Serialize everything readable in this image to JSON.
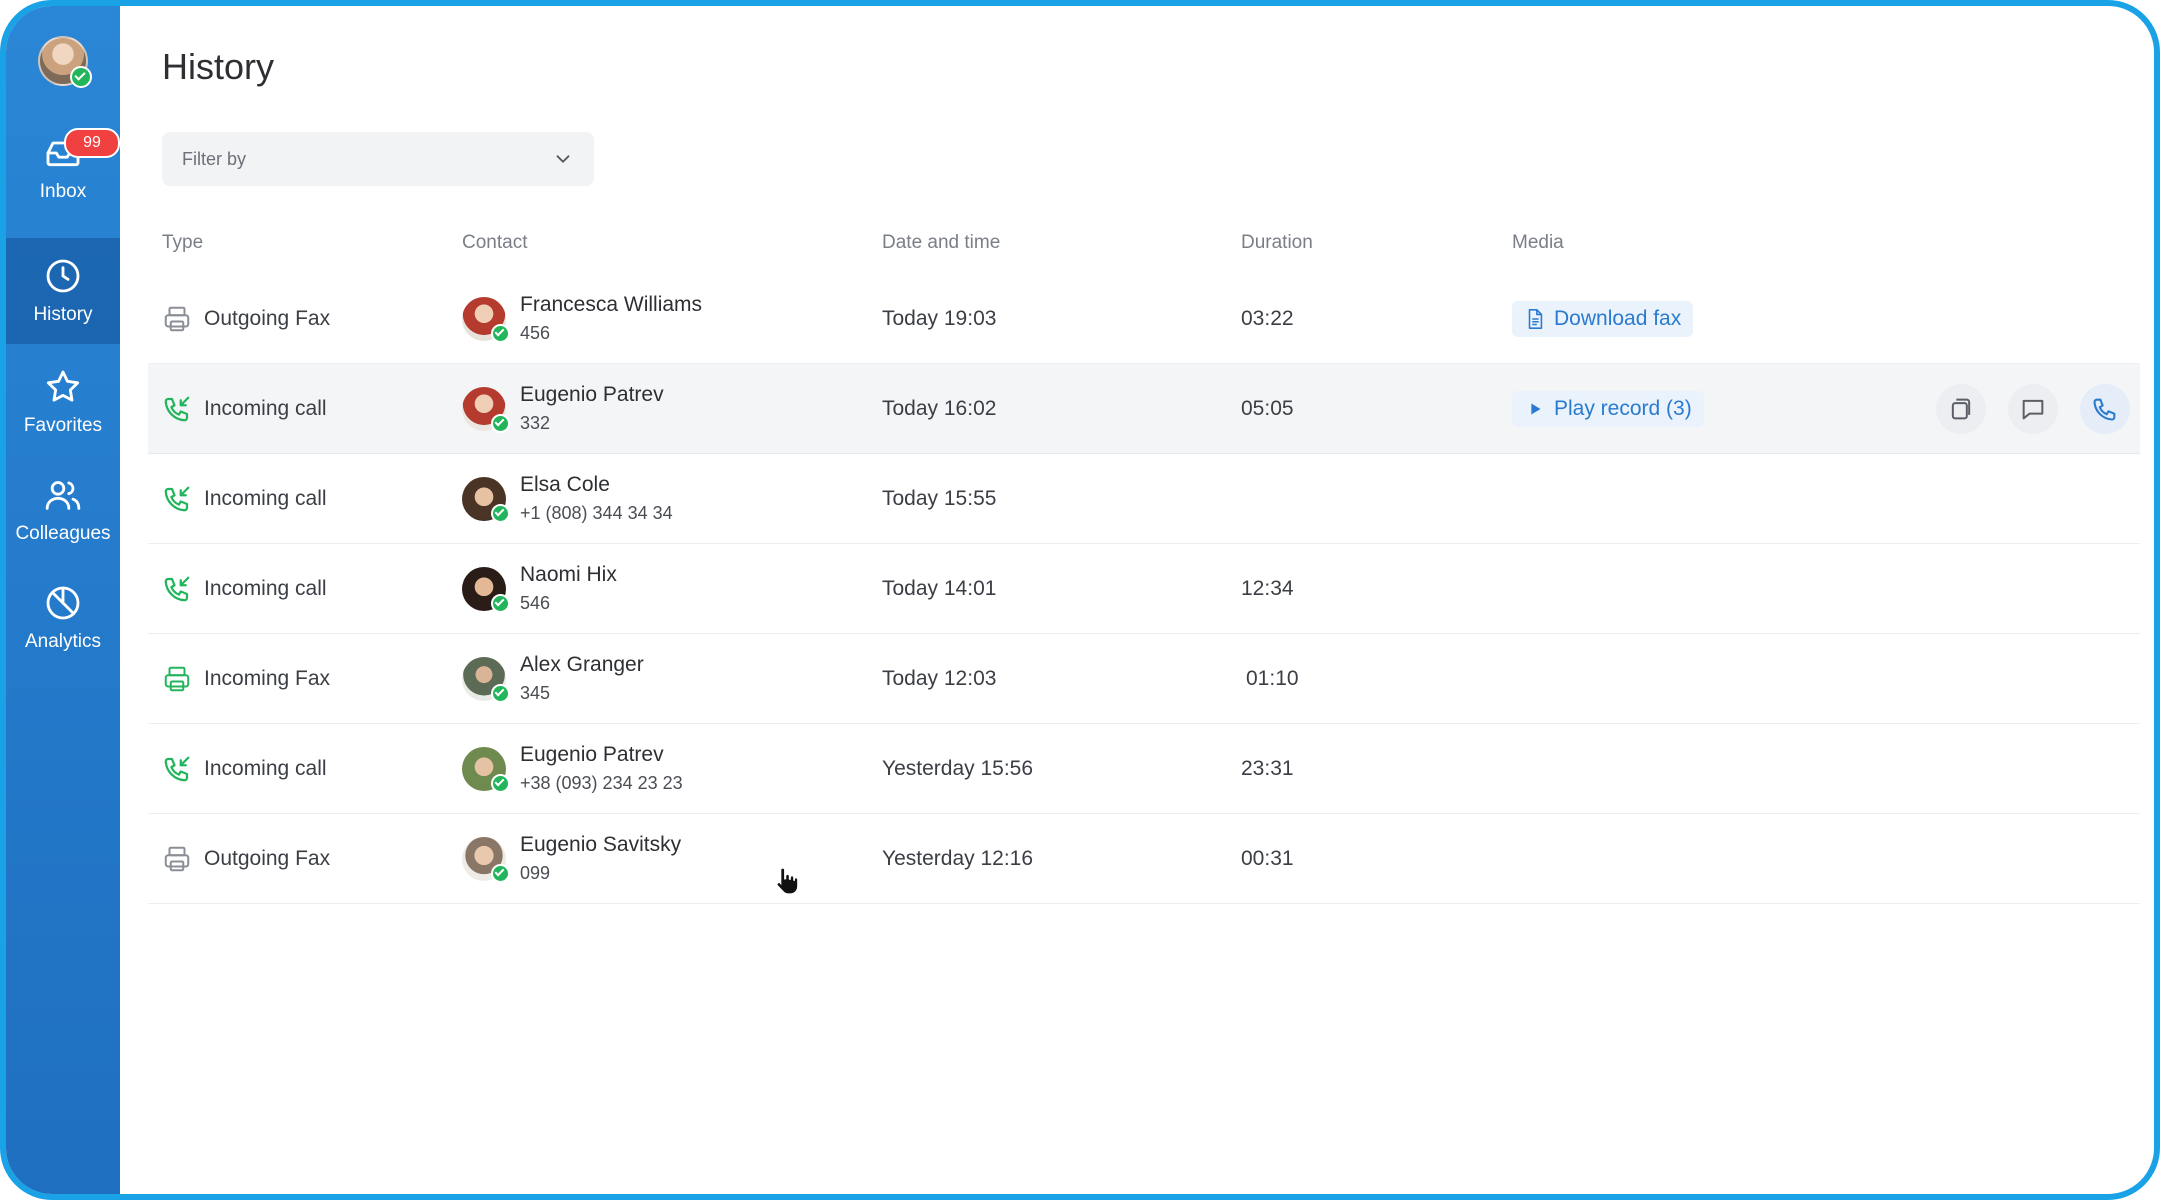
{
  "sidebar": {
    "inbox_badge": "99",
    "items": [
      {
        "label": "Inbox",
        "icon": "inbox-icon"
      },
      {
        "label": "History",
        "icon": "clock-icon"
      },
      {
        "label": "Favorites",
        "icon": "star-icon"
      },
      {
        "label": "Colleagues",
        "icon": "users-icon"
      },
      {
        "label": "Analytics",
        "icon": "pie-chart-icon"
      }
    ]
  },
  "header": {
    "title": "History"
  },
  "filter": {
    "placeholder": "Filter by"
  },
  "table": {
    "columns": [
      "Type",
      "Contact",
      "Date and time",
      "Duration",
      "Media"
    ],
    "rows": [
      {
        "type": "Outgoing Fax",
        "name": "Francesca Williams",
        "sub": "456",
        "date": "Today 19:03",
        "duration": "03:22",
        "media": "Download fax"
      },
      {
        "type": "Incoming call",
        "name": "Eugenio Patrev",
        "sub": "332",
        "date": "Today 16:02",
        "duration": "05:05",
        "media": "Play record (3)"
      },
      {
        "type": "Incoming call",
        "name": "Elsa Cole",
        "sub": "+1 (808) 344 34 34",
        "date": "Today 15:55",
        "duration": "",
        "media": ""
      },
      {
        "type": "Incoming call",
        "name": "Naomi Hix",
        "sub": "546",
        "date": "Today 14:01",
        "duration": "12:34",
        "media": ""
      },
      {
        "type": "Incoming Fax",
        "name": "Alex Granger",
        "sub": "345",
        "date": "Today 12:03",
        "duration": "01:10",
        "media": ""
      },
      {
        "type": "Incoming call",
        "name": "Eugenio Patrev",
        "sub": "+38 (093) 234 23 23",
        "date": "Yesterday 15:56",
        "duration": "23:31",
        "media": ""
      },
      {
        "type": "Outgoing Fax",
        "name": "Eugenio Savitsky",
        "sub": "099",
        "date": "Yesterday 12:16",
        "duration": "00:31",
        "media": ""
      }
    ]
  },
  "colors": {
    "sidebar": "#2a86d6",
    "accent": "#2a7bd0",
    "success": "#22b55c",
    "badge": "#f04040",
    "frame": "#1aa2e6"
  }
}
